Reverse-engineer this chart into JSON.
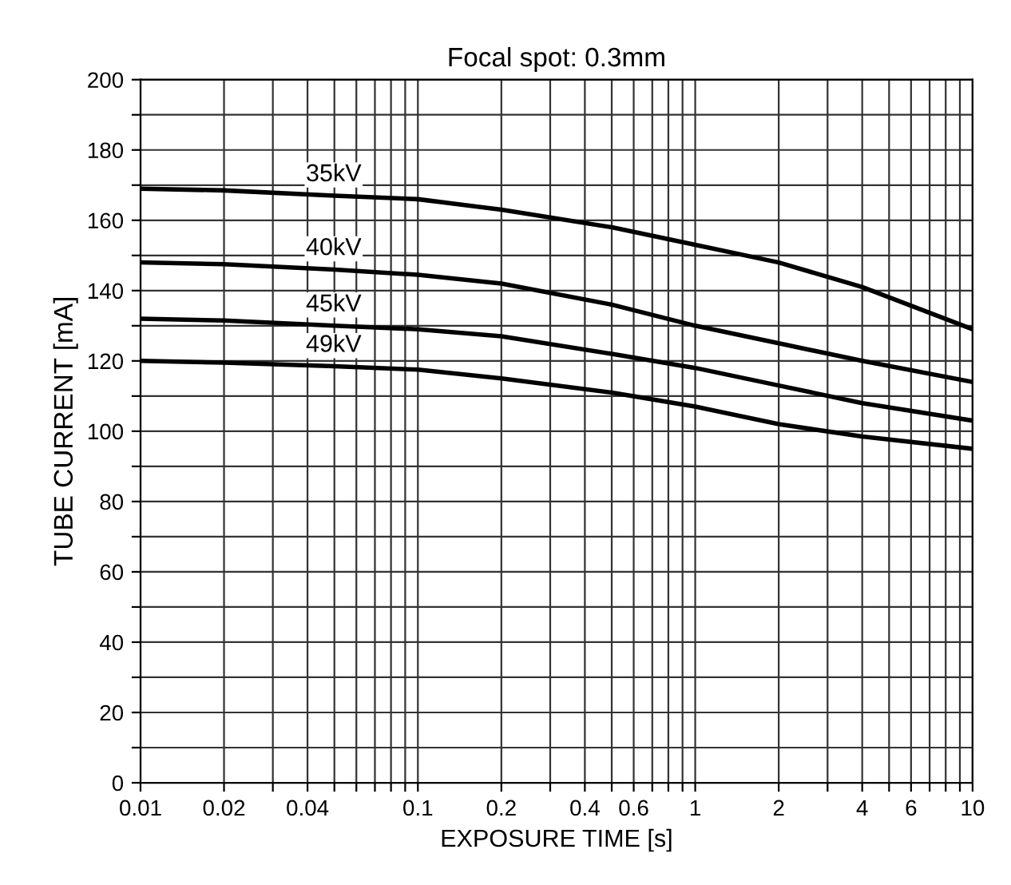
{
  "chart_data": {
    "type": "line",
    "title": "Focal spot: 0.3mm",
    "xlabel": "EXPOSURE TIME [s]",
    "ylabel": "TUBE CURRENT [mA]",
    "log": "x",
    "grid": true,
    "legend": false,
    "marker": "none",
    "line_style": "solid",
    "x": [
      0.01,
      0.02,
      0.05,
      0.1,
      0.2,
      0.5,
      1,
      2,
      4,
      10
    ],
    "series": [
      {
        "name": "35kV",
        "color": "#000000",
        "values": [
          169,
          168.5,
          167,
          166,
          163,
          158,
          153,
          148,
          141,
          129
        ]
      },
      {
        "name": "40kV",
        "color": "#000000",
        "values": [
          148,
          147.5,
          146,
          144.5,
          142,
          136,
          130,
          125,
          120,
          114
        ]
      },
      {
        "name": "45kV",
        "color": "#000000",
        "values": [
          132,
          131.5,
          130,
          129,
          127,
          122,
          118,
          113,
          108,
          103
        ]
      },
      {
        "name": "49kV",
        "color": "#000000",
        "values": [
          120,
          119.5,
          118.5,
          117.5,
          115,
          111,
          107,
          102,
          98.5,
          95
        ]
      }
    ],
    "xlim": [
      0.01,
      10
    ],
    "xticks": [
      0.01,
      0.02,
      {
        "value": 0.03,
        "label": null
      },
      0.04,
      {
        "value": 0.05,
        "label": null
      },
      {
        "value": 0.06,
        "label": null
      },
      {
        "value": 0.07,
        "label": null
      },
      {
        "value": 0.08,
        "label": null
      },
      {
        "value": 0.09,
        "label": null
      },
      0.1,
      0.2,
      {
        "value": 0.3,
        "label": null
      },
      0.4,
      {
        "value": 0.5,
        "label": null
      },
      0.6,
      {
        "value": 0.7,
        "label": null
      },
      {
        "value": 0.8,
        "label": null
      },
      {
        "value": 0.9,
        "label": null
      },
      1,
      2,
      {
        "value": 3,
        "label": null
      },
      4,
      {
        "value": 5,
        "label": null
      },
      6,
      {
        "value": 7,
        "label": null
      },
      {
        "value": 8,
        "label": null
      },
      {
        "value": 9,
        "label": null
      },
      10
    ],
    "ylim": [
      0,
      200
    ],
    "yticks": [
      0,
      {
        "value": 10,
        "label": null
      },
      20,
      {
        "value": 30,
        "label": null
      },
      40,
      {
        "value": 50,
        "label": null
      },
      60,
      {
        "value": 70,
        "label": null
      },
      80,
      {
        "value": 90,
        "label": null
      },
      100,
      {
        "value": 110,
        "label": null
      },
      120,
      {
        "value": 130,
        "label": null
      },
      140,
      {
        "value": 150,
        "label": null
      },
      160,
      {
        "value": 170,
        "label": null
      },
      180,
      {
        "value": 190,
        "label": null
      },
      200
    ]
  }
}
